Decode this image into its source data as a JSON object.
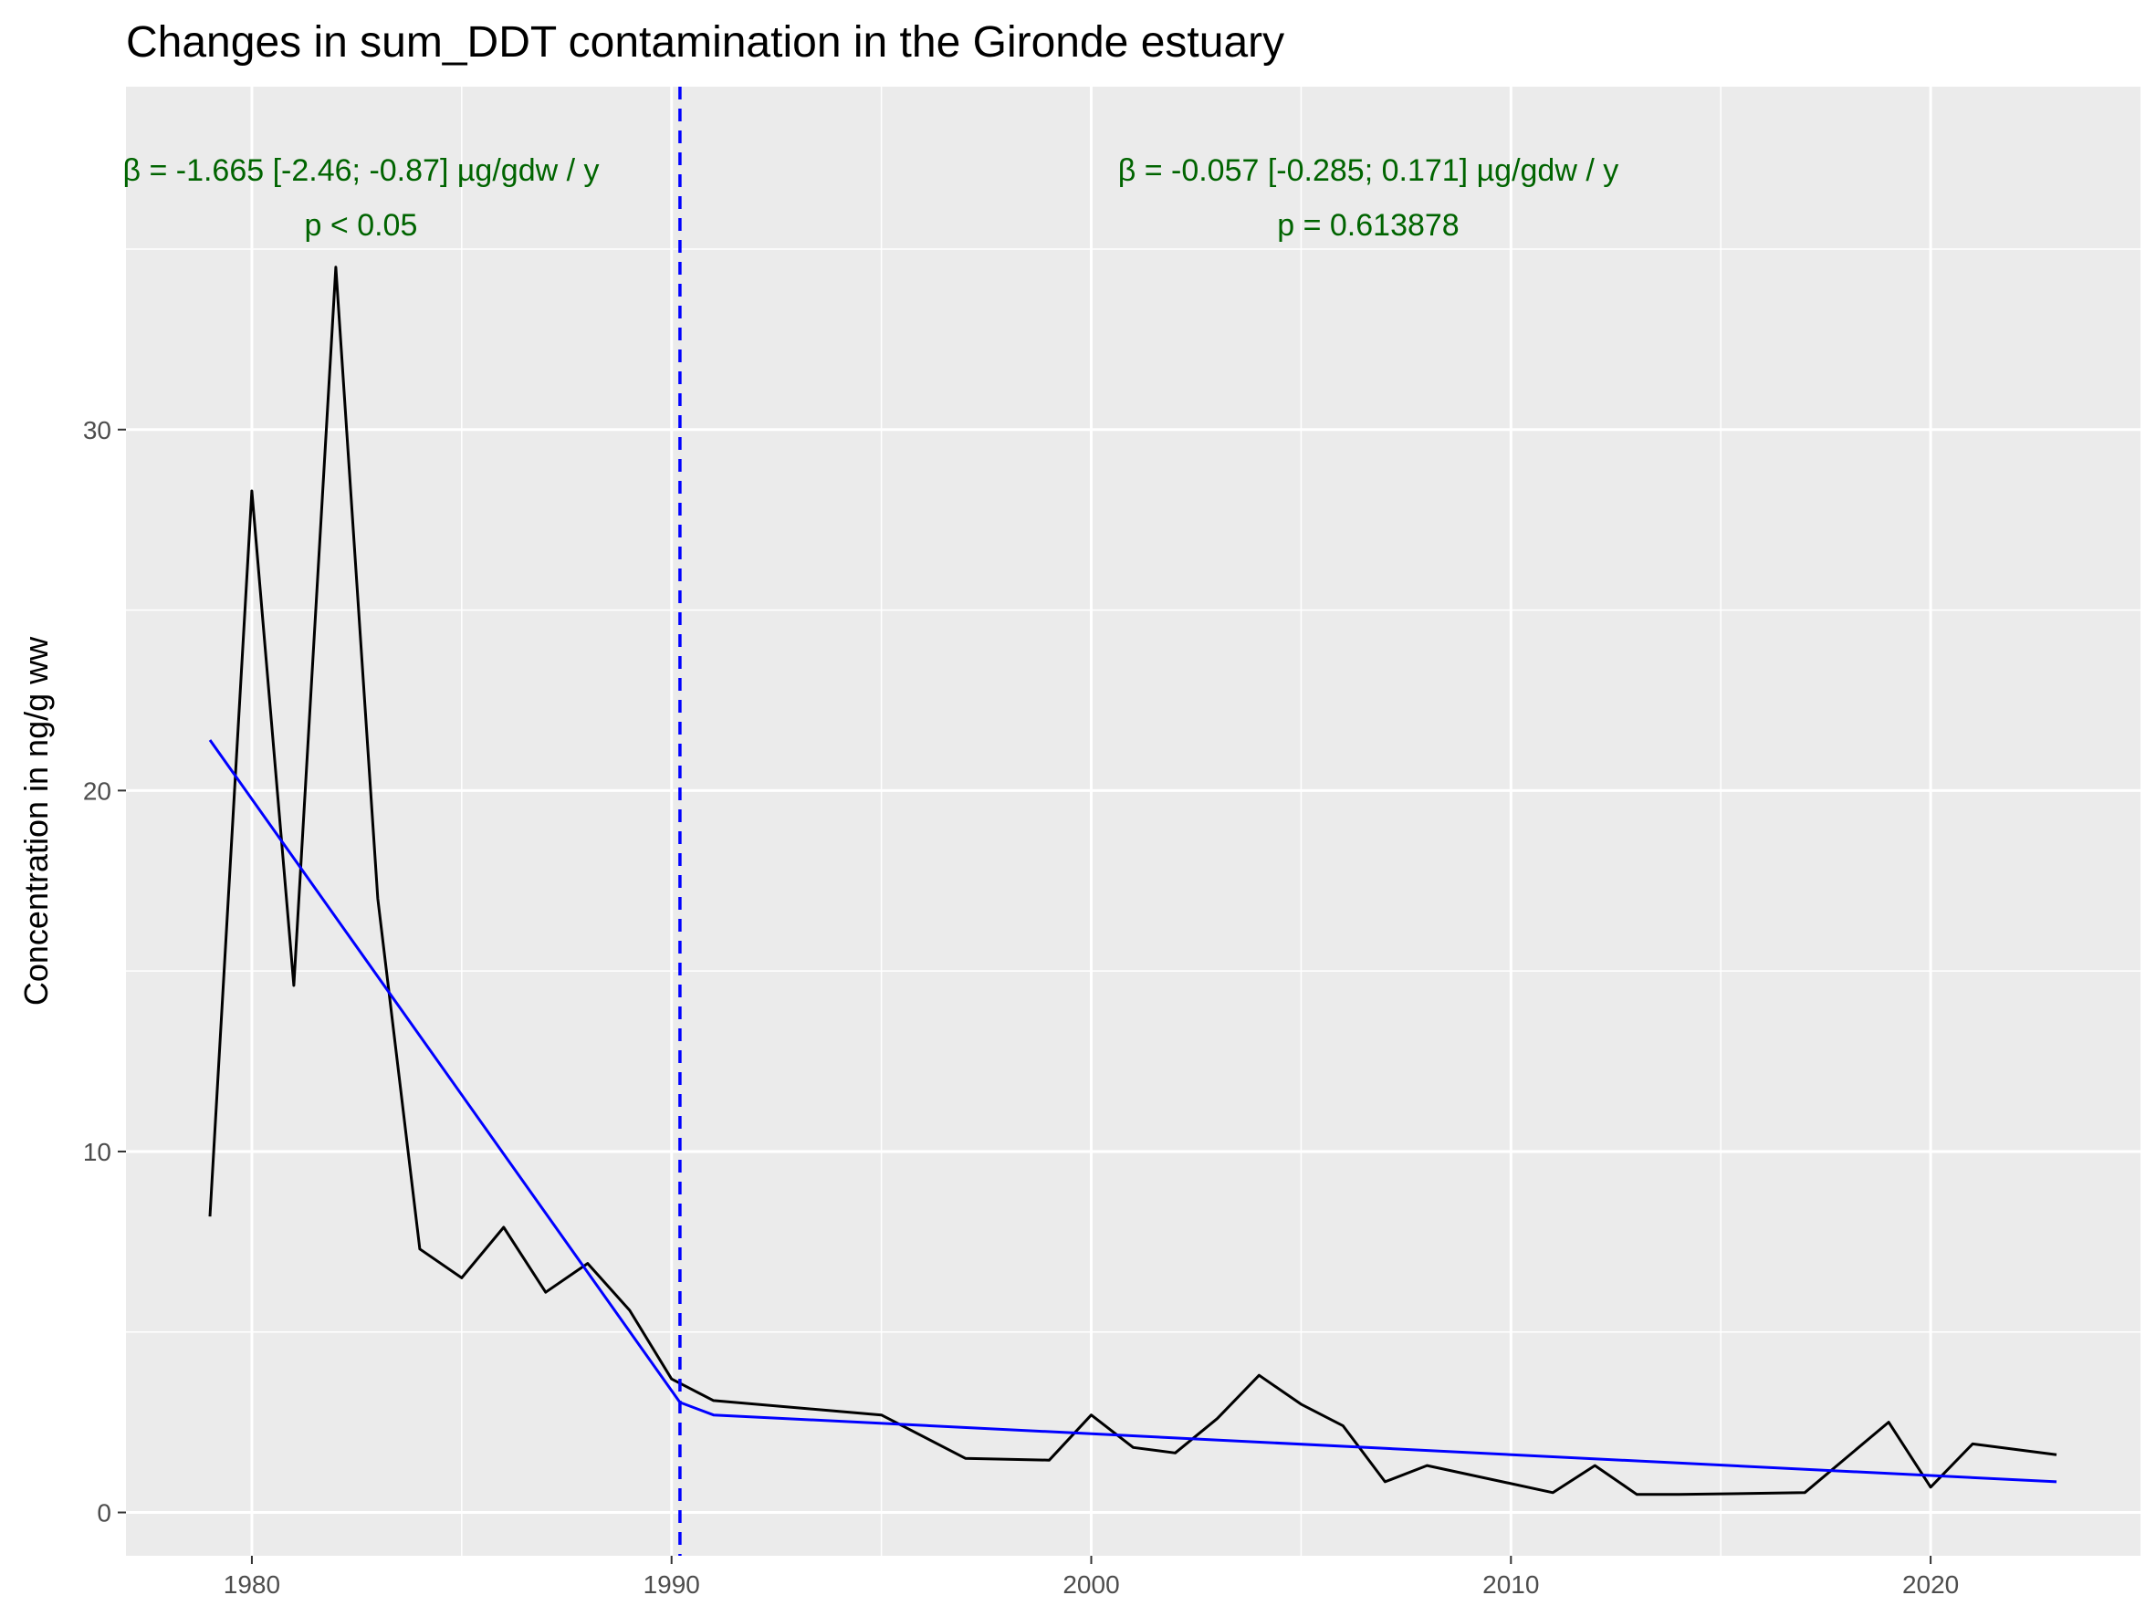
{
  "chart_data": {
    "type": "line",
    "title": "Changes in sum_DDT contamination in the Gironde estuary",
    "xlabel": "",
    "ylabel": "Concentration in ng/g ww",
    "xlim": [
      1977,
      2025
    ],
    "ylim": [
      -1.2,
      39.5
    ],
    "x_ticks": [
      1980,
      1990,
      2000,
      2010,
      2020
    ],
    "y_ticks": [
      0,
      10,
      20,
      30
    ],
    "grid": true,
    "breakpoint_x": 1990.2,
    "breakpoint_color": "#0000ff",
    "series": [
      {
        "color": "#000000",
        "x": [
          1979,
          1980,
          1981,
          1982,
          1983,
          1984,
          1985,
          1986,
          1987,
          1988,
          1989,
          1990,
          1991,
          1995,
          1997,
          1999,
          2000,
          2001,
          2002,
          2003,
          2004,
          2005,
          2006,
          2007,
          2008,
          2011,
          2012,
          2013,
          2014,
          2017,
          2019,
          2020,
          2021,
          2023
        ],
        "y": [
          8.2,
          28.3,
          14.6,
          34.5,
          17.0,
          7.3,
          6.5,
          7.9,
          6.1,
          6.9,
          5.6,
          3.7,
          3.1,
          2.7,
          1.5,
          1.45,
          2.7,
          1.8,
          1.65,
          2.6,
          3.8,
          3.0,
          2.4,
          0.85,
          1.3,
          0.55,
          1.3,
          0.5,
          0.5,
          0.55,
          2.5,
          0.7,
          1.9,
          1.6
        ]
      },
      {
        "color": "#0000ff",
        "x": [
          1979,
          1990.2,
          1991,
          2023
        ],
        "y": [
          21.4,
          3.05,
          2.7,
          0.85
        ]
      }
    ],
    "annotations": [
      {
        "line1": "β = -1.665 [-2.46; -0.87] µg/gdw / y",
        "line2": "p < 0.05",
        "x": 1982.6,
        "color": "#006400"
      },
      {
        "line1": "β = -0.057 [-0.285; 0.171] µg/gdw / y",
        "line2": "p = 0.613878",
        "x": 2006.6,
        "color": "#006400"
      }
    ],
    "panel_background": "#ebebeb",
    "gridline_color": "#ffffff"
  }
}
